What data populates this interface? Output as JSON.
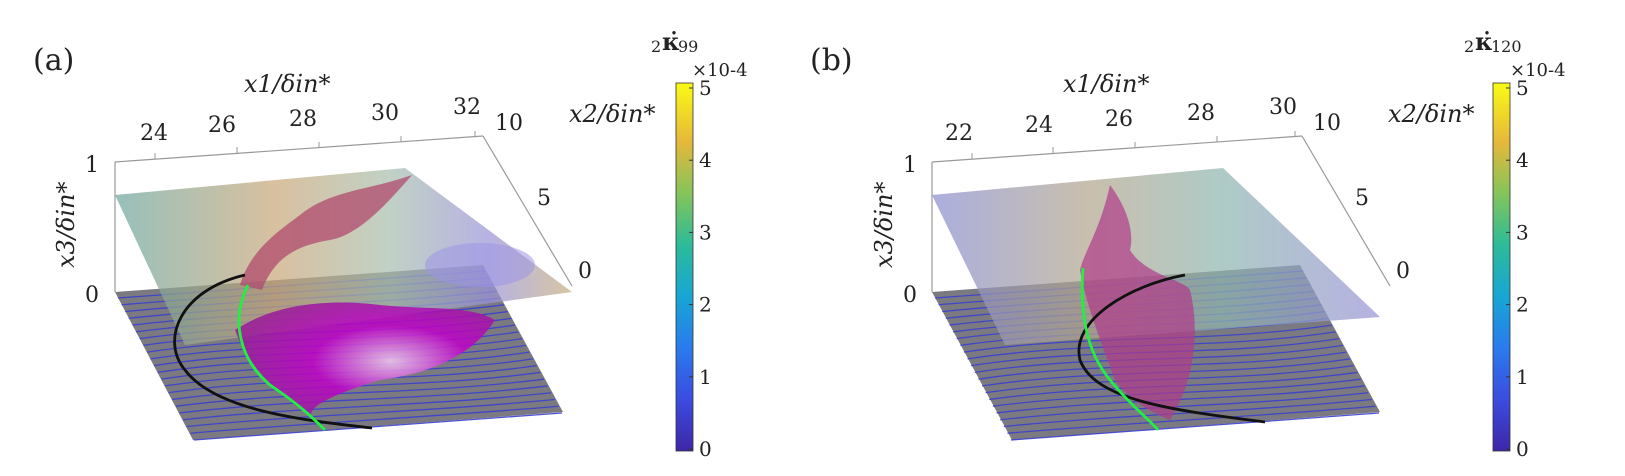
{
  "chart_data": [
    {
      "type": "3d-surface",
      "panel_label": "(a)",
      "x1_label": "x1/δin*",
      "x2_label": "x2/δin*",
      "x3_label": "x3/δin*",
      "x1_ticks": [
        "24",
        "26",
        "28",
        "30",
        "32"
      ],
      "x2_ticks": [
        "0",
        "5",
        "10"
      ],
      "x3_ticks": [
        "0",
        "1"
      ],
      "colorbar": {
        "label": "2κ̇99",
        "label_base": "2",
        "label_kappa": "κ̇",
        "label_sub": "99",
        "scale": "×10-4",
        "ticks": [
          "0",
          "1",
          "2",
          "3",
          "4",
          "5"
        ],
        "range": [
          0,
          5
        ]
      }
    },
    {
      "type": "3d-surface",
      "panel_label": "(b)",
      "x1_label": "x1/δin*",
      "x2_label": "x2/δin*",
      "x3_label": "x3/δin*",
      "x1_ticks": [
        "22",
        "24",
        "26",
        "28",
        "30"
      ],
      "x2_ticks": [
        "0",
        "5",
        "10"
      ],
      "x3_ticks": [
        "0",
        "1"
      ],
      "colorbar": {
        "label": "2κ̇120",
        "label_base": "2",
        "label_kappa": "κ̇",
        "label_sub": "120",
        "scale": "×10-4",
        "ticks": [
          "0",
          "1",
          "2",
          "3",
          "4",
          "5"
        ],
        "range": [
          0,
          5
        ]
      }
    }
  ],
  "colors": {
    "colormap": [
      "#3e26a8",
      "#2e5ee8",
      "#1d9bd8",
      "#2cb9a2",
      "#81c65a",
      "#d4bb3c",
      "#fdd52b",
      "#f9fb15"
    ],
    "streamline": "#2f35c8",
    "surface": "#b03060",
    "core": "#cc00cc",
    "green_line": "#22ee44",
    "black_line": "#111111"
  }
}
